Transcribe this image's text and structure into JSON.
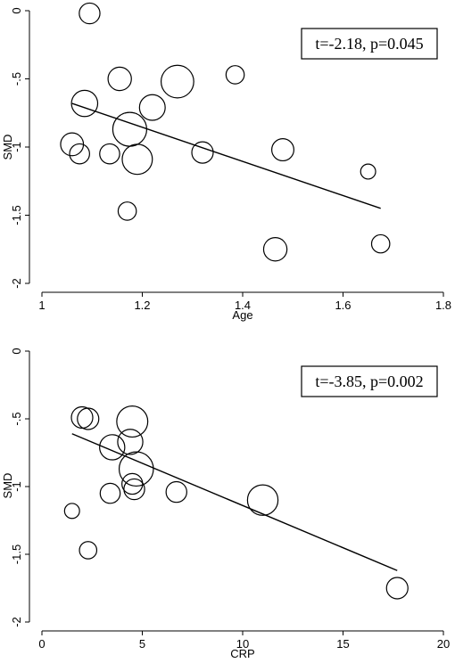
{
  "chart_data": [
    {
      "type": "scatter",
      "title": "",
      "xlabel": "Age",
      "ylabel": "SMD",
      "xlim": [
        1,
        1.8
      ],
      "ylim": [
        -2,
        0
      ],
      "xticks": [
        1,
        1.2,
        1.4,
        1.6,
        1.8
      ],
      "xtick_labels": [
        "1",
        "1.2",
        "1.4",
        "1.6",
        "1.8"
      ],
      "yticks": [
        0,
        -0.5,
        -1,
        -1.5,
        -2
      ],
      "ytick_labels": [
        "0",
        "-.5",
        "-1",
        "-1.5",
        "-2"
      ],
      "grid": false,
      "annotation": "t=-2.18, p=0.045",
      "points": [
        {
          "x": 1.095,
          "y": -0.02,
          "weight": 0.9
        },
        {
          "x": 1.155,
          "y": -0.5,
          "weight": 1.3
        },
        {
          "x": 1.27,
          "y": -0.52,
          "weight": 3.2
        },
        {
          "x": 1.385,
          "y": -0.47,
          "weight": 0.6
        },
        {
          "x": 1.085,
          "y": -0.68,
          "weight": 1.8
        },
        {
          "x": 1.22,
          "y": -0.71,
          "weight": 1.7
        },
        {
          "x": 1.175,
          "y": -0.87,
          "weight": 3.5
        },
        {
          "x": 1.06,
          "y": -0.98,
          "weight": 1.2
        },
        {
          "x": 1.075,
          "y": -1.05,
          "weight": 0.8
        },
        {
          "x": 1.135,
          "y": -1.05,
          "weight": 0.8
        },
        {
          "x": 1.19,
          "y": -1.09,
          "weight": 2.6
        },
        {
          "x": 1.32,
          "y": -1.04,
          "weight": 1.0
        },
        {
          "x": 1.48,
          "y": -1.02,
          "weight": 1.1
        },
        {
          "x": 1.65,
          "y": -1.18,
          "weight": 0.3
        },
        {
          "x": 1.17,
          "y": -1.47,
          "weight": 0.6
        },
        {
          "x": 1.465,
          "y": -1.75,
          "weight": 1.3
        },
        {
          "x": 1.675,
          "y": -1.71,
          "weight": 0.6
        }
      ],
      "fit_line": {
        "x": [
          1.06,
          1.675
        ],
        "y": [
          -0.68,
          -1.45
        ]
      }
    },
    {
      "type": "scatter",
      "title": "",
      "xlabel": "CRP",
      "ylabel": "SMD",
      "xlim": [
        0,
        20
      ],
      "ylim": [
        -2,
        0
      ],
      "xticks": [
        0,
        5,
        10,
        15,
        20
      ],
      "xtick_labels": [
        "0",
        "5",
        "10",
        "15",
        "20"
      ],
      "yticks": [
        0,
        -0.5,
        -1,
        -1.5,
        -2
      ],
      "ytick_labels": [
        "0",
        "-.5",
        "-1",
        "-1.5",
        "-2"
      ],
      "grid": false,
      "annotation": "t=-3.85, p=0.002",
      "points": [
        {
          "x": 2.0,
          "y": -0.49,
          "weight": 1.0
        },
        {
          "x": 2.3,
          "y": -0.5,
          "weight": 1.0
        },
        {
          "x": 4.5,
          "y": -0.52,
          "weight": 2.8
        },
        {
          "x": 3.5,
          "y": -0.71,
          "weight": 1.6
        },
        {
          "x": 4.4,
          "y": -0.67,
          "weight": 1.6
        },
        {
          "x": 4.7,
          "y": -0.87,
          "weight": 3.6
        },
        {
          "x": 4.5,
          "y": -0.98,
          "weight": 0.9
        },
        {
          "x": 4.6,
          "y": -1.02,
          "weight": 0.9
        },
        {
          "x": 3.4,
          "y": -1.05,
          "weight": 0.8
        },
        {
          "x": 6.7,
          "y": -1.04,
          "weight": 0.9
        },
        {
          "x": 11.0,
          "y": -1.1,
          "weight": 2.7
        },
        {
          "x": 1.5,
          "y": -1.18,
          "weight": 0.3
        },
        {
          "x": 2.3,
          "y": -1.47,
          "weight": 0.5
        },
        {
          "x": 17.7,
          "y": -1.75,
          "weight": 1.0
        }
      ],
      "fit_line": {
        "x": [
          1.5,
          17.7
        ],
        "y": [
          -0.61,
          -1.62
        ]
      }
    }
  ]
}
